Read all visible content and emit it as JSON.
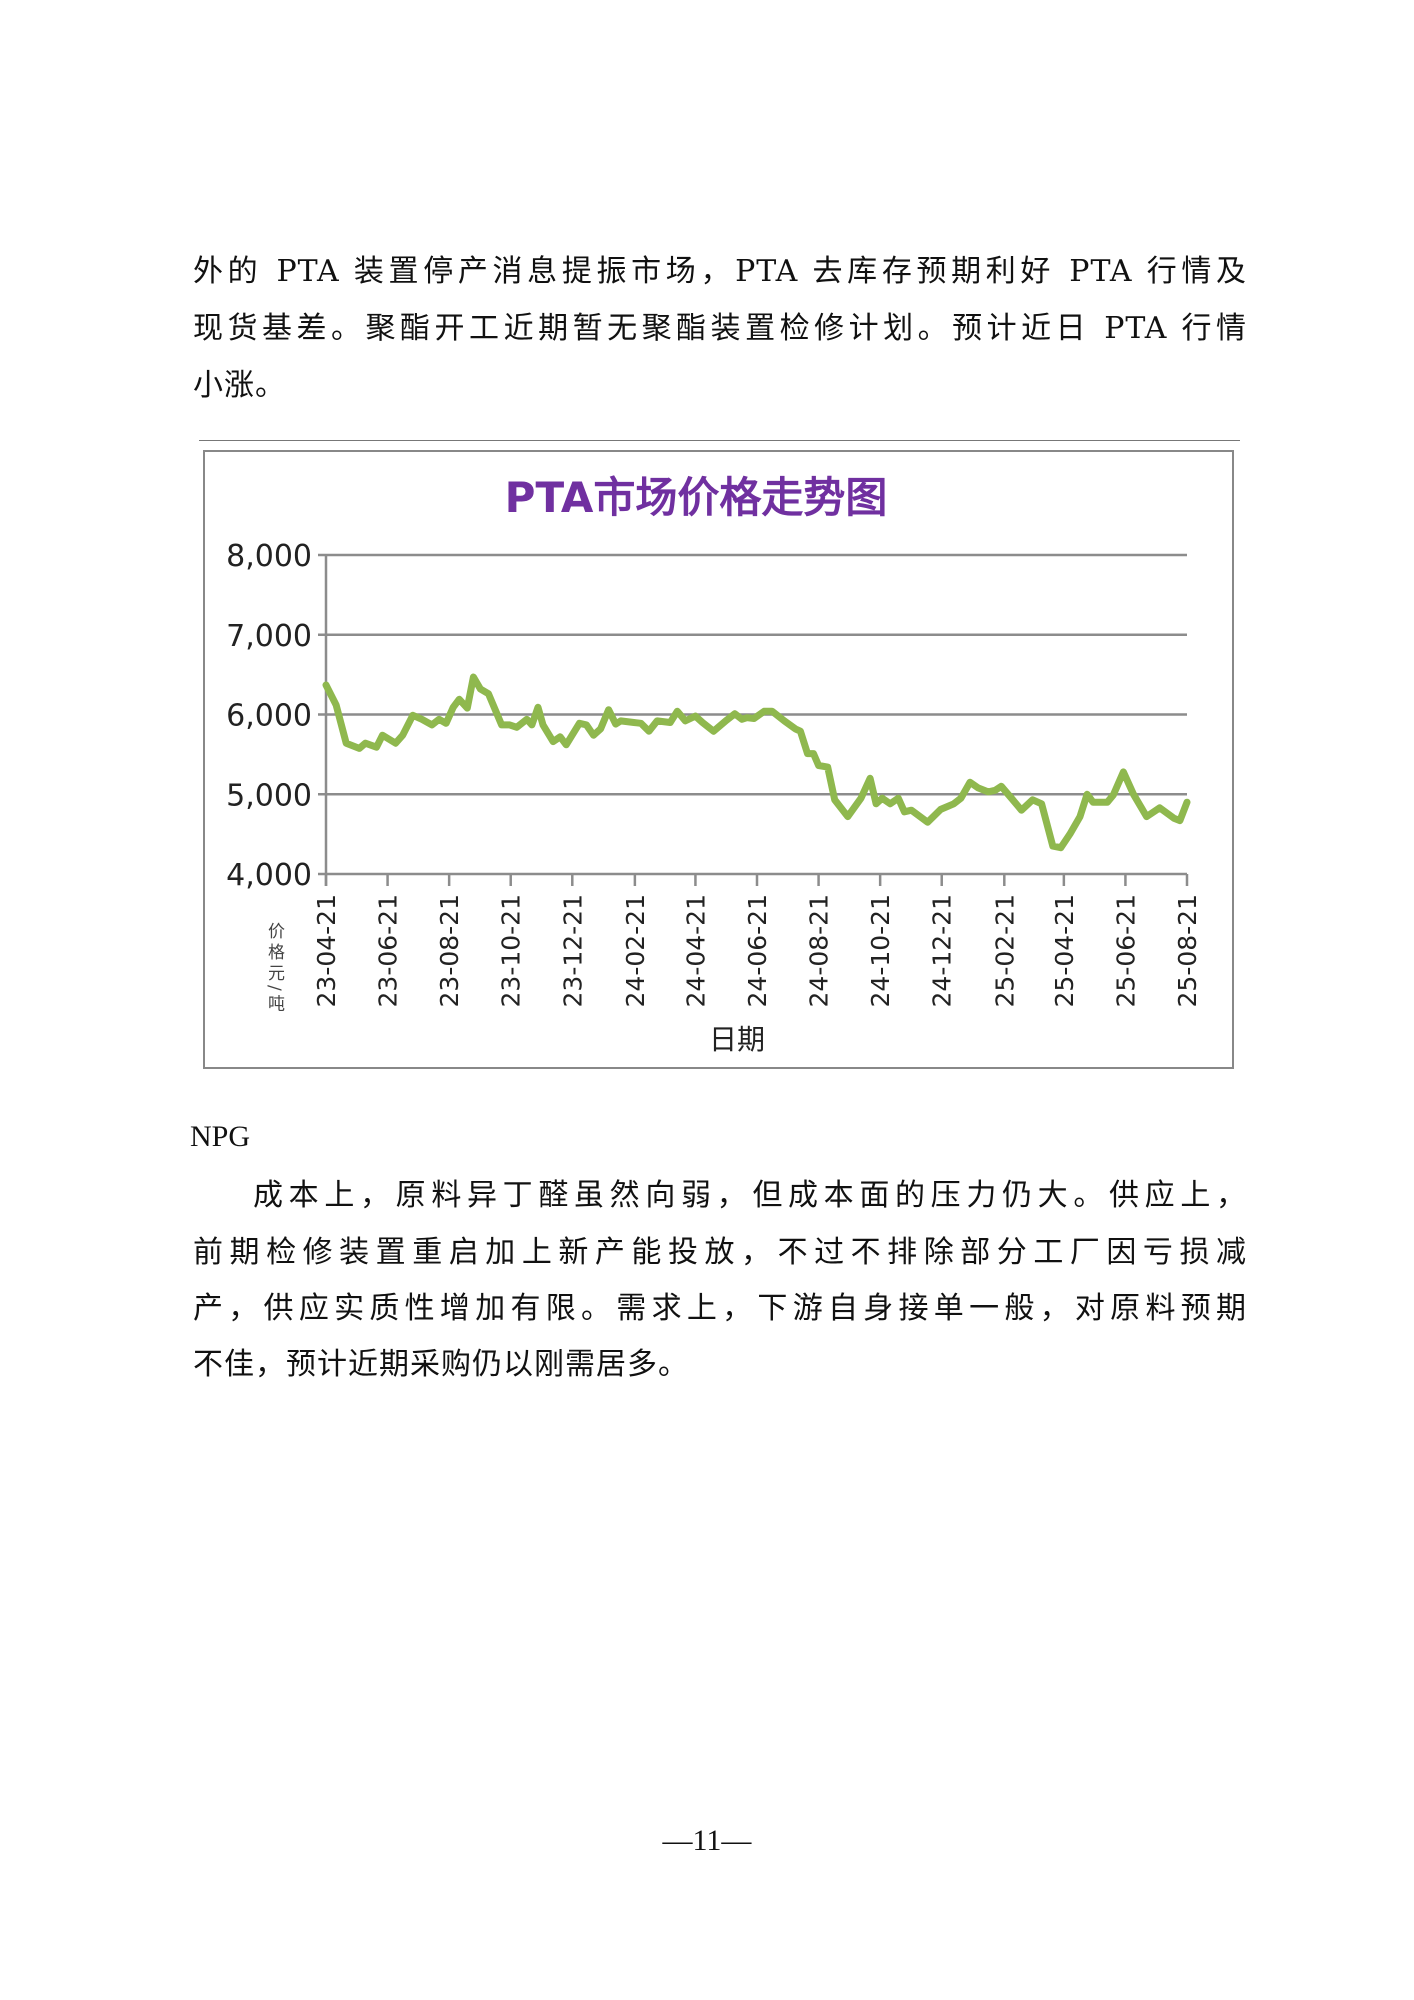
{
  "paragraph_top": {
    "lines": [
      "外的 PTA 装置停产消息提振市场，PTA 去库存预期利好 PTA 行情及",
      "现货基差。聚酯开工近期暂无聚酯装置检修计划。预计近日 PTA 行情",
      "小涨。"
    ]
  },
  "section_heading": "NPG",
  "paragraph_npg": {
    "lines": [
      "成本上，原料异丁醛虽然向弱，但成本面的压力仍大。供应上，",
      "前期检修装置重启加上新产能投放，不过不排除部分工厂因亏损减",
      "产，供应实质性增加有限。需求上，下游自身接单一般，对原料预期",
      "不佳，预计近期采购仍以刚需居多。"
    ]
  },
  "page_number": "—11—",
  "chart_data": {
    "type": "line",
    "title": "PTA市场价格走势图",
    "xlabel": "日期",
    "ylabel": "价格元/吨",
    "ylim": [
      4000,
      8000
    ],
    "yticks": [
      "4,000",
      "5,000",
      "6,000",
      "7,000",
      "8,000"
    ],
    "ytick_values": [
      4000,
      5000,
      6000,
      7000,
      8000
    ],
    "xticks": [
      "23-04-21",
      "23-06-21",
      "23-08-21",
      "23-10-21",
      "23-12-21",
      "24-02-21",
      "24-04-21",
      "24-06-21",
      "24-08-21",
      "24-10-21",
      "24-12-21",
      "25-02-21",
      "25-04-21",
      "25-06-21",
      "25-08-21"
    ],
    "xtick_dates": [
      "2023-04-21",
      "2023-06-21",
      "2023-08-21",
      "2023-10-21",
      "2023-12-21",
      "2024-02-21",
      "2024-04-21",
      "2024-06-21",
      "2024-08-21",
      "2024-10-21",
      "2024-12-21",
      "2025-02-21",
      "2025-04-21",
      "2025-06-21",
      "2025-08-21"
    ],
    "grid": true,
    "legend": "none",
    "colors": {
      "line": "#8fb84e",
      "title": "#7030a0",
      "grid": "#8c8c8c"
    },
    "series": [
      {
        "points": [
          [
            "2023-04-21",
            6370
          ],
          [
            "2023-05-01",
            6120
          ],
          [
            "2023-05-11",
            5640
          ],
          [
            "2023-05-24",
            5575
          ],
          [
            "2023-05-30",
            5640
          ],
          [
            "2023-06-10",
            5590
          ],
          [
            "2023-06-16",
            5740
          ],
          [
            "2023-06-29",
            5640
          ],
          [
            "2023-07-06",
            5740
          ],
          [
            "2023-07-16",
            5990
          ],
          [
            "2023-07-25",
            5940
          ],
          [
            "2023-08-04",
            5870
          ],
          [
            "2023-08-11",
            5940
          ],
          [
            "2023-08-18",
            5890
          ],
          [
            "2023-08-25",
            6090
          ],
          [
            "2023-08-31",
            6190
          ],
          [
            "2023-09-08",
            6080
          ],
          [
            "2023-09-14",
            6470
          ],
          [
            "2023-09-21",
            6320
          ],
          [
            "2023-09-29",
            6260
          ],
          [
            "2023-10-12",
            5870
          ],
          [
            "2023-10-20",
            5870
          ],
          [
            "2023-10-27",
            5840
          ],
          [
            "2023-11-06",
            5940
          ],
          [
            "2023-11-11",
            5870
          ],
          [
            "2023-11-17",
            6090
          ],
          [
            "2023-11-22",
            5870
          ],
          [
            "2023-12-02",
            5660
          ],
          [
            "2023-12-09",
            5720
          ],
          [
            "2023-12-15",
            5620
          ],
          [
            "2023-12-28",
            5890
          ],
          [
            "2024-01-04",
            5870
          ],
          [
            "2024-01-11",
            5740
          ],
          [
            "2024-01-18",
            5820
          ],
          [
            "2024-01-26",
            6060
          ],
          [
            "2024-02-02",
            5880
          ],
          [
            "2024-02-07",
            5920
          ],
          [
            "2024-02-20",
            5900
          ],
          [
            "2024-02-27",
            5890
          ],
          [
            "2024-03-06",
            5790
          ],
          [
            "2024-03-14",
            5920
          ],
          [
            "2024-03-27",
            5900
          ],
          [
            "2024-04-03",
            6040
          ],
          [
            "2024-04-11",
            5920
          ],
          [
            "2024-04-21",
            5980
          ],
          [
            "2024-04-28",
            5900
          ],
          [
            "2024-05-09",
            5790
          ],
          [
            "2024-05-22",
            5930
          ],
          [
            "2024-05-30",
            6010
          ],
          [
            "2024-06-06",
            5940
          ],
          [
            "2024-06-11",
            5960
          ],
          [
            "2024-06-18",
            5950
          ],
          [
            "2024-06-28",
            6040
          ],
          [
            "2024-07-06",
            6040
          ],
          [
            "2024-07-18",
            5920
          ],
          [
            "2024-07-29",
            5820
          ],
          [
            "2024-08-03",
            5790
          ],
          [
            "2024-08-10",
            5510
          ],
          [
            "2024-08-16",
            5510
          ],
          [
            "2024-08-21",
            5360
          ],
          [
            "2024-08-30",
            5340
          ],
          [
            "2024-09-06",
            4930
          ],
          [
            "2024-09-19",
            4720
          ],
          [
            "2024-10-02",
            4950
          ],
          [
            "2024-10-11",
            5200
          ],
          [
            "2024-10-17",
            4880
          ],
          [
            "2024-10-23",
            4950
          ],
          [
            "2024-10-31",
            4880
          ],
          [
            "2024-11-08",
            4950
          ],
          [
            "2024-11-14",
            4780
          ],
          [
            "2024-11-21",
            4800
          ],
          [
            "2024-12-07",
            4650
          ],
          [
            "2024-12-20",
            4810
          ],
          [
            "2025-01-02",
            4880
          ],
          [
            "2025-01-09",
            4950
          ],
          [
            "2025-01-18",
            5150
          ],
          [
            "2025-01-26",
            5080
          ],
          [
            "2025-02-05",
            5030
          ],
          [
            "2025-02-12",
            5050
          ],
          [
            "2025-02-18",
            5100
          ],
          [
            "2025-02-28",
            4950
          ],
          [
            "2025-03-10",
            4800
          ],
          [
            "2025-03-21",
            4930
          ],
          [
            "2025-03-30",
            4880
          ],
          [
            "2025-04-10",
            4350
          ],
          [
            "2025-04-18",
            4330
          ],
          [
            "2025-04-27",
            4500
          ],
          [
            "2025-05-07",
            4720
          ],
          [
            "2025-05-14",
            5000
          ],
          [
            "2025-05-20",
            4900
          ],
          [
            "2025-06-03",
            4900
          ],
          [
            "2025-06-09",
            4990
          ],
          [
            "2025-06-19",
            5280
          ],
          [
            "2025-06-29",
            5000
          ],
          [
            "2025-07-12",
            4720
          ],
          [
            "2025-07-25",
            4830
          ],
          [
            "2025-08-08",
            4700
          ],
          [
            "2025-08-14",
            4670
          ],
          [
            "2025-08-21",
            4900
          ]
        ]
      }
    ]
  }
}
